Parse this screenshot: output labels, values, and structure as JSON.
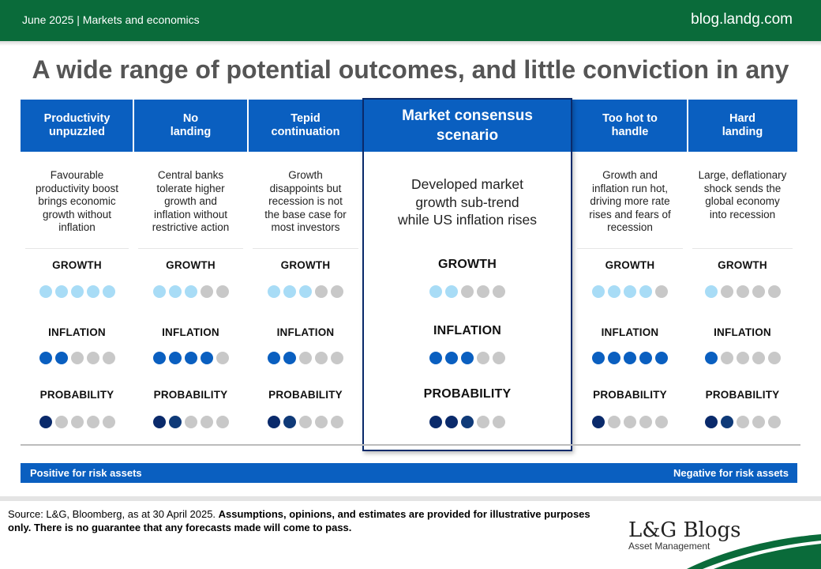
{
  "topbar": {
    "date_section": "June 2025 | Markets and economics",
    "site": "blog.landg.com"
  },
  "title": "A wide range of potential outcomes, and little conviction in any",
  "row_labels": {
    "growth": "GROWTH",
    "inflation": "INFLATION",
    "probability": "PROBABILITY"
  },
  "scenarios": [
    {
      "heading": "Productivity unpuzzled",
      "heading_lines": [
        "Productivity",
        "unpuzzled"
      ],
      "description_lines": [
        "Favourable",
        "productivity boost",
        "brings economic",
        "growth without",
        "inflation"
      ],
      "growth": 5,
      "inflation": 2,
      "probability": 1
    },
    {
      "heading": "No landing",
      "heading_lines": [
        "No",
        "landing"
      ],
      "description_lines": [
        "Central banks",
        "tolerate higher",
        "growth and",
        "inflation without",
        "restrictive action"
      ],
      "growth": 3,
      "inflation": 4,
      "probability": 2
    },
    {
      "heading": "Tepid continuation",
      "heading_lines": [
        "Tepid",
        "continuation"
      ],
      "description_lines": [
        "Growth",
        "disappoints but",
        "recession is not",
        "the base case for",
        "most investors"
      ],
      "growth": 3,
      "inflation": 2,
      "probability": 2
    },
    {
      "heading": "Market consensus scenario",
      "heading_lines": [
        "Market consensus",
        "scenario"
      ],
      "description_lines": [
        "Developed market",
        "growth  sub-trend",
        "while US inflation rises"
      ],
      "growth": 2,
      "inflation": 3,
      "probability": 3
    },
    {
      "heading": "Too hot to handle",
      "heading_lines": [
        "Too hot to",
        "handle"
      ],
      "description_lines": [
        "Growth and",
        "inflation run hot,",
        "driving more rate",
        "rises and fears of",
        "recession"
      ],
      "growth": 4,
      "inflation": 5,
      "probability": 1
    },
    {
      "heading": "Hard landing",
      "heading_lines": [
        "Hard",
        "landing"
      ],
      "description_lines": [
        "Large, deflationary",
        "shock sends the",
        "global economy",
        "into recession"
      ],
      "growth": 1,
      "inflation": 1,
      "probability": 2
    }
  ],
  "dot_max": 5,
  "colors": {
    "growth_on": "#a8dcf6",
    "inflation_on": "#0a5fc0",
    "probability_on": "#0a2a6b",
    "off": "#c8c8c8",
    "header_blue": "#0a5fc0",
    "topbar_green": "#0a6b3a"
  },
  "risk_bar": {
    "left": "Positive for risk assets",
    "right": "Negative for risk assets"
  },
  "footer": {
    "source_plain": "Source: L&G, Bloomberg, as at 30 April 2025. ",
    "source_bold": "Assumptions, opinions, and estimates are provided for illustrative purposes only. There is no guarantee that any forecasts made will come to pass.",
    "logo_main": "L&G Blogs",
    "logo_sub": "Asset Management"
  }
}
